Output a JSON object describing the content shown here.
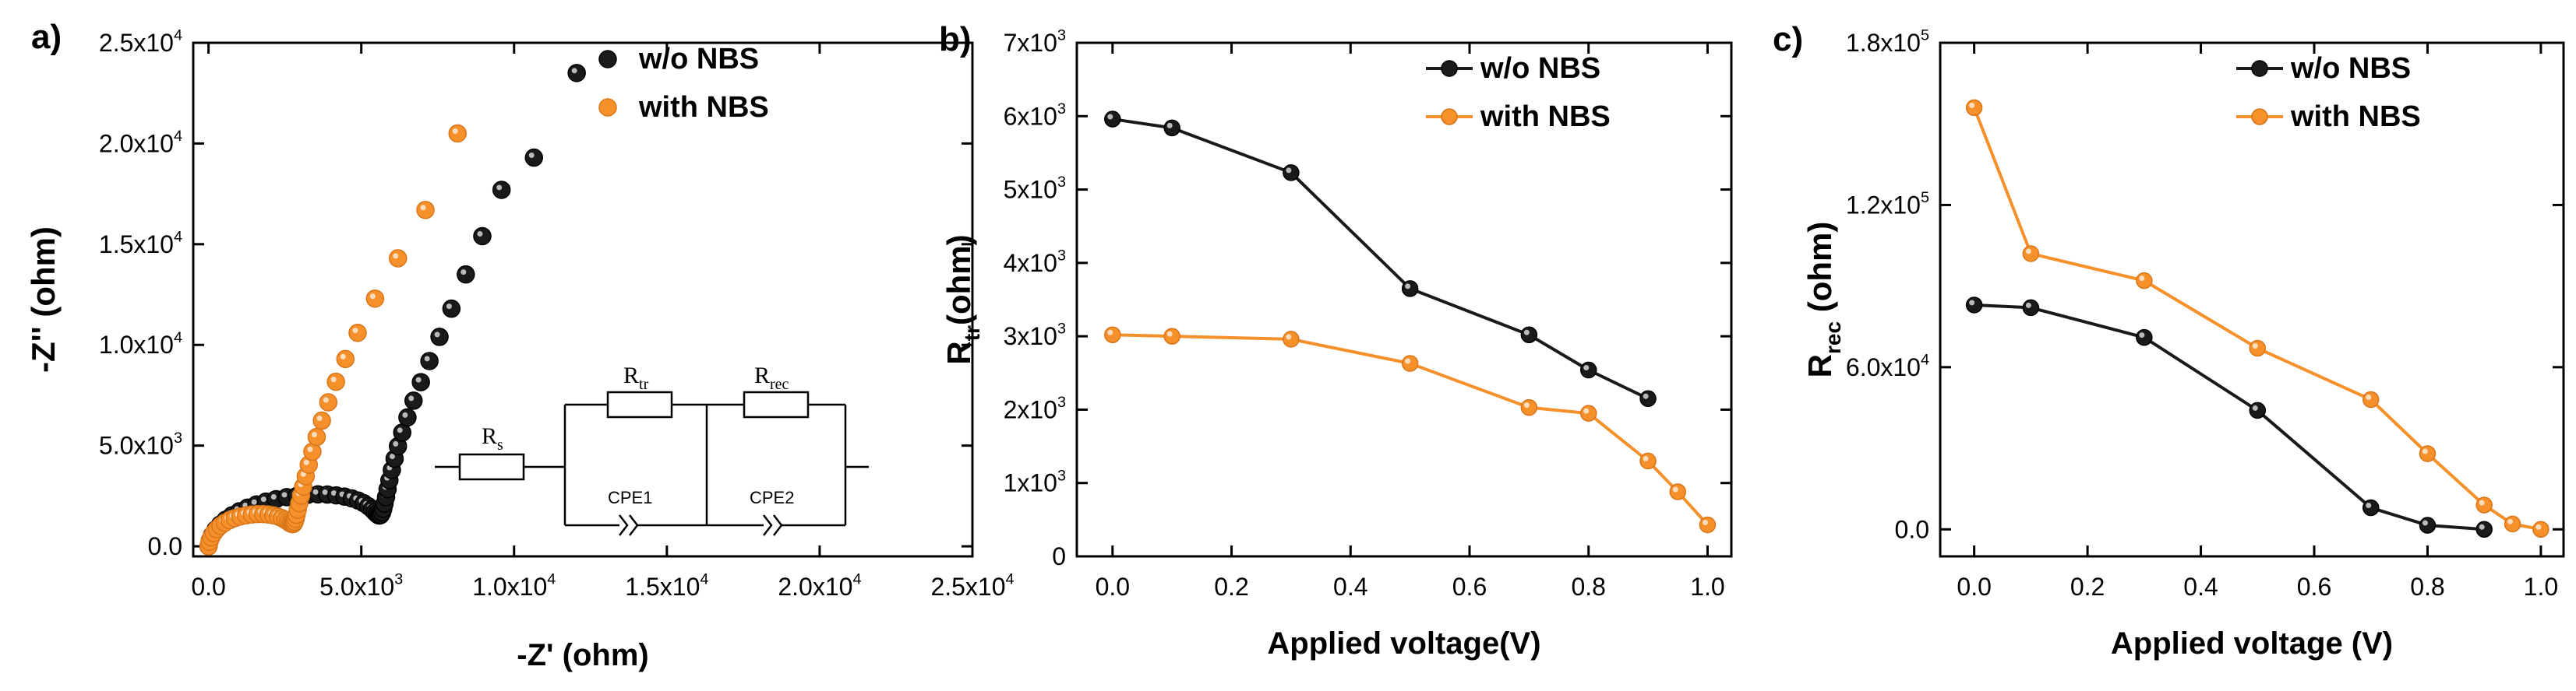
{
  "colors": {
    "black_series": "#1a1a1a",
    "orange_series": "#f5902a",
    "axis": "#000000"
  },
  "chart_data": [
    {
      "type": "scatter",
      "panel_label": "a)",
      "xlabel": "-Z' (ohm)",
      "ylabel": "-Z'' (ohm)",
      "xlim": [
        -500,
        25000
      ],
      "ylim": [
        -500,
        25000
      ],
      "x_ticks": [
        0,
        5000,
        10000,
        15000,
        20000,
        25000
      ],
      "x_tick_labels": [
        [
          "0.0",
          ""
        ],
        [
          "5.0x10",
          "3"
        ],
        [
          "1.0x10",
          "4"
        ],
        [
          "1.5x10",
          "4"
        ],
        [
          "2.0x10",
          "4"
        ],
        [
          "2.5x10",
          "4"
        ]
      ],
      "y_ticks": [
        0,
        5000,
        10000,
        15000,
        20000,
        25000
      ],
      "y_tick_labels": [
        [
          "0.0",
          ""
        ],
        [
          "5.0x10",
          "3"
        ],
        [
          "1.0x10",
          "4"
        ],
        [
          "1.5x10",
          "4"
        ],
        [
          "2.0x10",
          "4"
        ],
        [
          "2.5x10",
          "4"
        ]
      ],
      "legend": [
        "w/o NBS",
        "with NBS"
      ],
      "series": [
        {
          "name": "w/o NBS",
          "color": "#1a1a1a",
          "x": [
            0,
            40,
            120,
            230,
            380,
            560,
            770,
            1010,
            1280,
            1570,
            1880,
            2210,
            2560,
            2900,
            3250,
            3580,
            3890,
            4180,
            4450,
            4690,
            4900,
            5080,
            5230,
            5350,
            5440,
            5510,
            5560,
            5600,
            5640,
            5680,
            5720,
            5760,
            5810,
            5860,
            5920,
            6000,
            6090,
            6200,
            6340,
            6510,
            6710,
            6950,
            7230,
            7560,
            7950,
            8420,
            8960,
            9590,
            10650,
            12050
          ],
          "y": [
            0,
            280,
            560,
            830,
            1080,
            1320,
            1540,
            1740,
            1920,
            2080,
            2220,
            2340,
            2440,
            2510,
            2560,
            2580,
            2570,
            2530,
            2470,
            2380,
            2270,
            2140,
            1990,
            1840,
            1700,
            1600,
            1540,
            1530,
            1560,
            1680,
            1860,
            2120,
            2440,
            2830,
            3280,
            3790,
            4350,
            4970,
            5650,
            6400,
            7230,
            8150,
            9200,
            10400,
            11800,
            13500,
            15400,
            17700,
            19300,
            23500
          ]
        },
        {
          "name": "with NBS",
          "color": "#f5902a",
          "x": [
            0,
            30,
            90,
            170,
            270,
            390,
            530,
            690,
            860,
            1040,
            1230,
            1420,
            1610,
            1790,
            1960,
            2120,
            2270,
            2400,
            2510,
            2600,
            2670,
            2720,
            2760,
            2790,
            2820,
            2850,
            2880,
            2920,
            2970,
            3030,
            3100,
            3180,
            3280,
            3400,
            3540,
            3710,
            3920,
            4170,
            4480,
            4880,
            5450,
            6200,
            7100,
            8150
          ],
          "y": [
            0,
            230,
            450,
            660,
            850,
            1020,
            1170,
            1300,
            1400,
            1480,
            1540,
            1580,
            1600,
            1600,
            1580,
            1540,
            1480,
            1400,
            1310,
            1220,
            1150,
            1110,
            1100,
            1130,
            1220,
            1360,
            1560,
            1820,
            2140,
            2520,
            2960,
            3470,
            4050,
            4700,
            5430,
            6240,
            7150,
            8170,
            9300,
            10600,
            12300,
            14300,
            16700,
            20500
          ]
        }
      ],
      "inset": {
        "labels": [
          "R",
          "s",
          "R",
          "tr",
          "R",
          "rec",
          "CPE1",
          "CPE2"
        ]
      }
    },
    {
      "type": "line",
      "panel_label": "b)",
      "xlabel": "Applied voltage(V)",
      "ylabel_main": "R",
      "ylabel_sub": "tr",
      "ylabel_unit": "(ohm)",
      "xlim": [
        -0.06,
        1.04
      ],
      "ylim": [
        0,
        7000
      ],
      "x_ticks": [
        0.0,
        0.2,
        0.4,
        0.6,
        0.8,
        1.0
      ],
      "x_tick_labels": [
        "0.0",
        "0.2",
        "0.4",
        "0.6",
        "0.8",
        "1.0"
      ],
      "y_ticks": [
        0,
        1000,
        2000,
        3000,
        4000,
        5000,
        6000,
        7000
      ],
      "y_tick_labels": [
        [
          "0",
          ""
        ],
        [
          "1x10",
          "3"
        ],
        [
          "2x10",
          "3"
        ],
        [
          "3x10",
          "3"
        ],
        [
          "4x10",
          "3"
        ],
        [
          "5x10",
          "3"
        ],
        [
          "6x10",
          "3"
        ],
        [
          "7x10",
          "3"
        ]
      ],
      "legend": [
        "w/o NBS",
        "with NBS"
      ],
      "series": [
        {
          "name": "w/o NBS",
          "color": "#1a1a1a",
          "x": [
            0.0,
            0.1,
            0.3,
            0.5,
            0.7,
            0.8,
            0.9
          ],
          "y": [
            5960,
            5840,
            5230,
            3650,
            3020,
            2540,
            2150
          ]
        },
        {
          "name": "with NBS",
          "color": "#f5902a",
          "x": [
            0.0,
            0.1,
            0.3,
            0.5,
            0.7,
            0.8,
            0.9,
            0.95,
            1.0
          ],
          "y": [
            3020,
            3000,
            2960,
            2630,
            2030,
            1950,
            1300,
            880,
            430
          ]
        }
      ]
    },
    {
      "type": "line",
      "panel_label": "c)",
      "xlabel": "Applied voltage (V)",
      "ylabel_main": "R",
      "ylabel_sub": "rec",
      "ylabel_unit": " (ohm)",
      "xlim": [
        -0.06,
        1.04
      ],
      "ylim": [
        -10000,
        180000
      ],
      "x_ticks": [
        0.0,
        0.2,
        0.4,
        0.6,
        0.8,
        1.0
      ],
      "x_tick_labels": [
        "0.0",
        "0.2",
        "0.4",
        "0.6",
        "0.8",
        "1.0"
      ],
      "y_ticks": [
        0,
        60000,
        120000,
        180000
      ],
      "y_tick_labels": [
        [
          "0.0",
          ""
        ],
        [
          "6.0x10",
          "4"
        ],
        [
          "1.2x10",
          "5"
        ],
        [
          "1.8x10",
          "5"
        ]
      ],
      "legend": [
        "w/o NBS",
        "with NBS"
      ],
      "series": [
        {
          "name": "w/o NBS",
          "color": "#1a1a1a",
          "x": [
            0.0,
            0.1,
            0.3,
            0.5,
            0.7,
            0.8,
            0.9
          ],
          "y": [
            83000,
            82000,
            71000,
            44000,
            8000,
            1500,
            0
          ]
        },
        {
          "name": "with NBS",
          "color": "#f5902a",
          "x": [
            0.0,
            0.1,
            0.3,
            0.5,
            0.7,
            0.8,
            0.9,
            0.95,
            1.0
          ],
          "y": [
            156000,
            102000,
            92000,
            67000,
            48000,
            28000,
            9000,
            2000,
            0
          ]
        }
      ]
    }
  ]
}
